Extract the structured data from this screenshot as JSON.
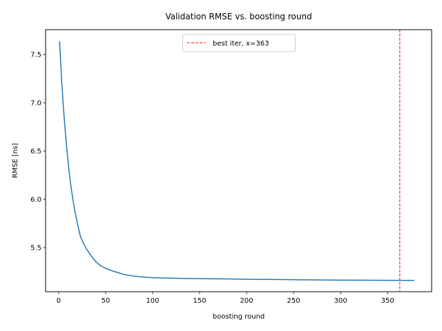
{
  "chart_data": {
    "type": "line",
    "title": "Validation RMSE vs. boosting round",
    "xlabel": "boosting round",
    "ylabel": "RMSE [ns]",
    "xlim": [
      -13.9,
      396.9
    ],
    "ylim": [
      5.043,
      7.757
    ],
    "xticks": [
      0,
      50,
      100,
      150,
      200,
      250,
      300,
      350
    ],
    "yticks": [
      5.5,
      6.0,
      6.5,
      7.0,
      7.5
    ],
    "xtick_labels": [
      "0",
      "50",
      "100",
      "150",
      "200",
      "250",
      "300",
      "350"
    ],
    "ytick_labels": [
      "5.5",
      "6.0",
      "6.5",
      "7.0",
      "7.5"
    ],
    "grid": false,
    "legend_position": "top-center",
    "series": [
      {
        "color": "#1f77b4",
        "x": [
          1,
          3,
          5,
          7,
          9,
          11,
          13,
          15,
          17,
          20,
          23,
          26,
          30,
          35,
          40,
          45,
          50,
          55,
          60,
          65,
          70,
          80,
          90,
          100,
          120,
          140,
          160,
          180,
          200,
          250,
          300,
          363,
          378
        ],
        "y": [
          7.63,
          7.26,
          6.96,
          6.71,
          6.49,
          6.3,
          6.14,
          6.01,
          5.89,
          5.75,
          5.62,
          5.55,
          5.48,
          5.41,
          5.35,
          5.31,
          5.285,
          5.265,
          5.25,
          5.235,
          5.22,
          5.205,
          5.195,
          5.188,
          5.183,
          5.18,
          5.177,
          5.175,
          5.172,
          5.167,
          5.163,
          5.16,
          5.16
        ]
      }
    ],
    "vline": {
      "x": 363,
      "label": "best iter, x=363",
      "color": "#ff0000",
      "style": "dashed"
    }
  }
}
